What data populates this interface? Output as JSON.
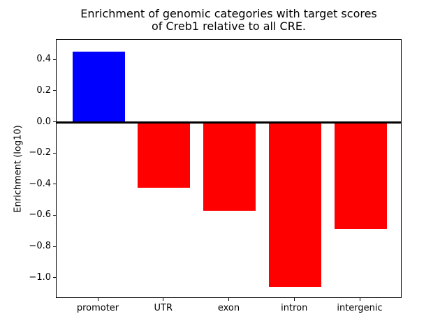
{
  "chart_data": {
    "type": "bar",
    "title": "Enrichment of genomic categories with target scores\nof Creb1 relative to all CRE.",
    "title_line1": "Enrichment of genomic categories with target scores",
    "title_line2": "of Creb1 relative to all CRE.",
    "xlabel": "",
    "ylabel": "Enrichment (log10)",
    "categories": [
      "promoter",
      "UTR",
      "exon",
      "intron",
      "intergenic"
    ],
    "values": [
      0.455,
      -0.42,
      -0.565,
      -1.056,
      -0.682
    ],
    "bar_colors": [
      "#0000ff",
      "#ff0000",
      "#ff0000",
      "#ff0000",
      "#ff0000"
    ],
    "positive_color": "#0000ff",
    "negative_color": "#ff0000",
    "ylim": [
      -1.131,
      0.531
    ],
    "yticks": [
      0.4,
      0.2,
      0.0,
      -0.2,
      -0.4,
      -0.6,
      -0.8,
      -1.0
    ],
    "ytick_labels": [
      "0.4",
      "0.2",
      "0.0",
      "−0.2",
      "−0.4",
      "−0.6",
      "−0.8",
      "−1.0"
    ],
    "grid": false,
    "legend": false,
    "zero_line": true
  }
}
